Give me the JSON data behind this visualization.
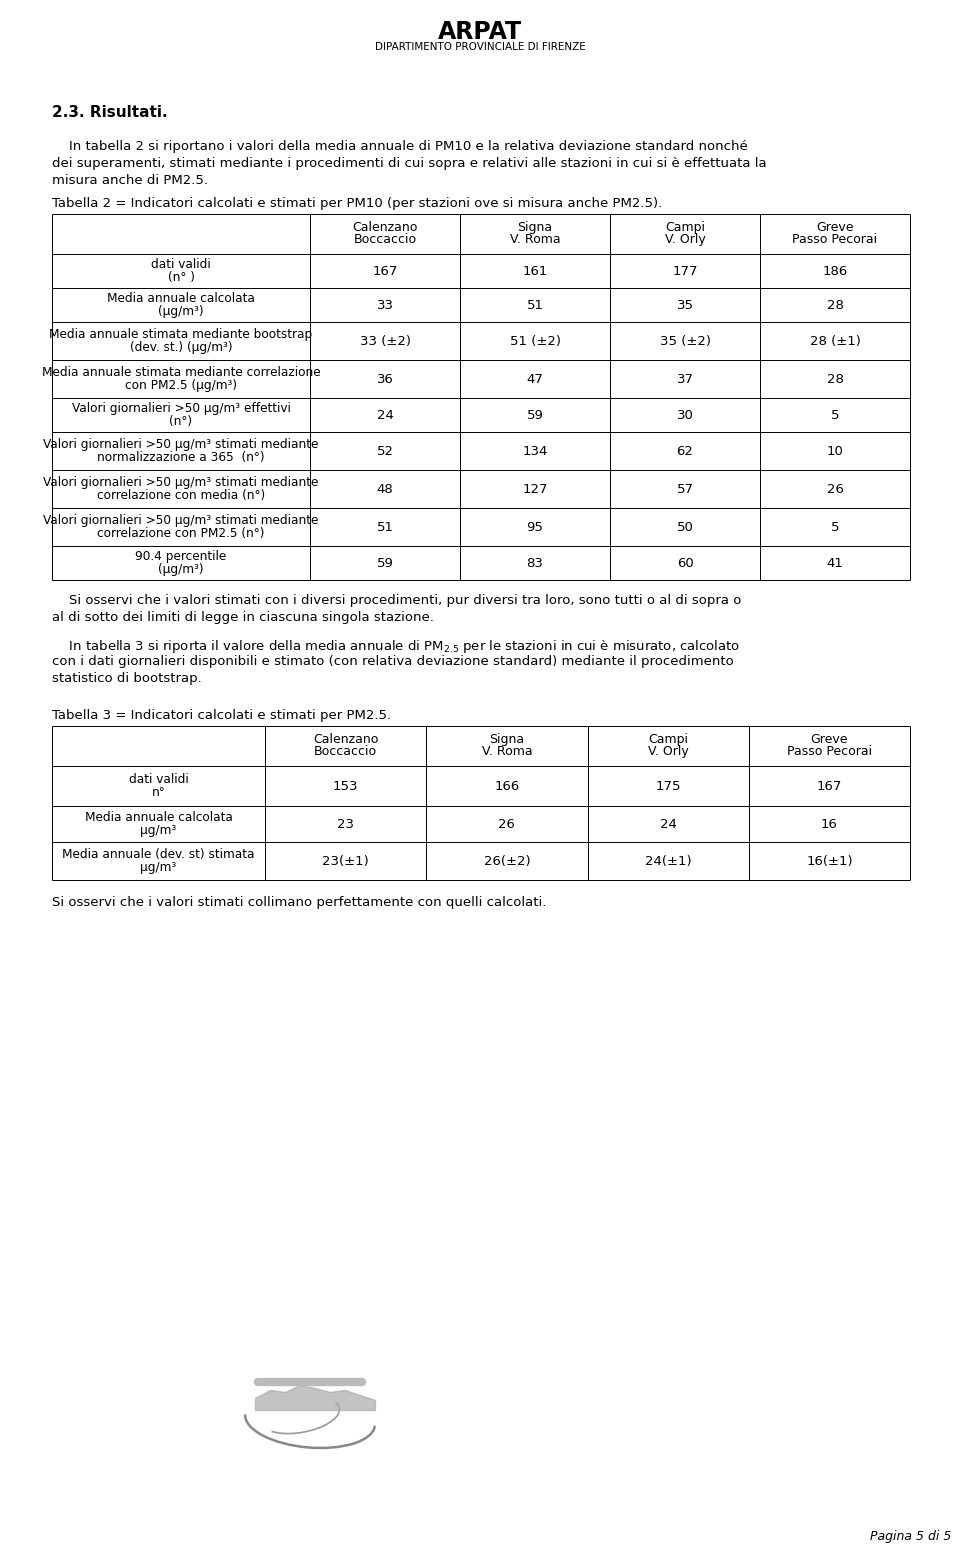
{
  "page_title": "ARPAT",
  "page_subtitle": "DIPARTIMENTO PROVINCIALE DI FIRENZE",
  "section_title": "2.3. Risultati.",
  "intro_para_line1": "    In tabella 2 si riportano i valori della media annuale di PM10 e la relativa deviazione standard nonché",
  "intro_para_line2": "dei superamenti, stimati mediante i procedimenti di cui sopra e relativi alle stazioni in cui si è effettuata la",
  "intro_para_line3": "misura anche di PM2.5.",
  "table2_title": "Tabella 2 = Indicatori calcolati e stimati per PM10 (per stazioni ove si misura anche PM2.5).",
  "table2_col_headers": [
    "Calenzano\nBoccaccio",
    "Signa\nV. Roma",
    "Campi\nV. Orly",
    "Greve\nPasso Pecorai"
  ],
  "table2_rows": [
    [
      "dati validi\n(n° )",
      "167",
      "161",
      "177",
      "186"
    ],
    [
      "Media annuale calcolata\n(μg/m³)",
      "33",
      "51",
      "35",
      "28"
    ],
    [
      "Media annuale stimata mediante bootstrap\n(dev. st.) (μg/m³)",
      "33 (±2)",
      "51 (±2)",
      "35 (±2)",
      "28 (±1)"
    ],
    [
      "Media annuale stimata mediante correlazione\ncon PM2.5 (μg/m³)",
      "36",
      "47",
      "37",
      "28"
    ],
    [
      "Valori giornalieri >50 μg/m³ effettivi\n(n°)",
      "24",
      "59",
      "30",
      "5"
    ],
    [
      "Valori giornalieri >50 μg/m³ stimati mediante\nnormalizzazione a 365  (n°)",
      "52",
      "134",
      "62",
      "10"
    ],
    [
      "Valori giornalieri >50 μg/m³ stimati mediante\ncorrelazione con media (n°)",
      "48",
      "127",
      "57",
      "26"
    ],
    [
      "Valori giornalieri >50 μg/m³ stimati mediante\ncorrelazione con PM2.5 (n°)",
      "51",
      "95",
      "50",
      "5"
    ],
    [
      "90.4 percentile\n(μg/m³)",
      "59",
      "83",
      "60",
      "41"
    ]
  ],
  "mid_para_line1": "    Si osservi che i valori stimati con i diversi procedimenti, pur diversi tra loro, sono tutti o al di sopra o",
  "mid_para_line2": "al di sotto dei limiti di legge in ciascuna singola stazione.",
  "para3_line1": "    In tabella 3 si riporta il valore della media annuale di PM2.5 per le stazioni in cui è misurato, calcolato",
  "para3_line2": "con i dati giornalieri disponibili e stimato (con relativa deviazione standard) mediante il procedimento",
  "para3_line3": "statistico di bootstrap.",
  "table3_title": "Tabella 3 = Indicatori calcolati e stimati per PM2.5.",
  "table3_col_headers": [
    "Calenzano\nBoccaccio",
    "Signa\nV. Roma",
    "Campi\nV. Orly",
    "Greve\nPasso Pecorai"
  ],
  "table3_rows": [
    [
      "dati validi\nn°",
      "153",
      "166",
      "175",
      "167"
    ],
    [
      "Media annuale calcolata\nμg/m³",
      "23",
      "26",
      "24",
      "16"
    ],
    [
      "Media annuale (dev. st) stimata\nμg/m³",
      "23(±1)",
      "26(±2)",
      "24(±1)",
      "16(±1)"
    ]
  ],
  "footer_para": "Si osservi che i valori stimati collimano perfettamente con quelli calcolati.",
  "page_footer": "Pagina 5 di 5",
  "bg_color": "#ffffff",
  "text_color": "#000000"
}
